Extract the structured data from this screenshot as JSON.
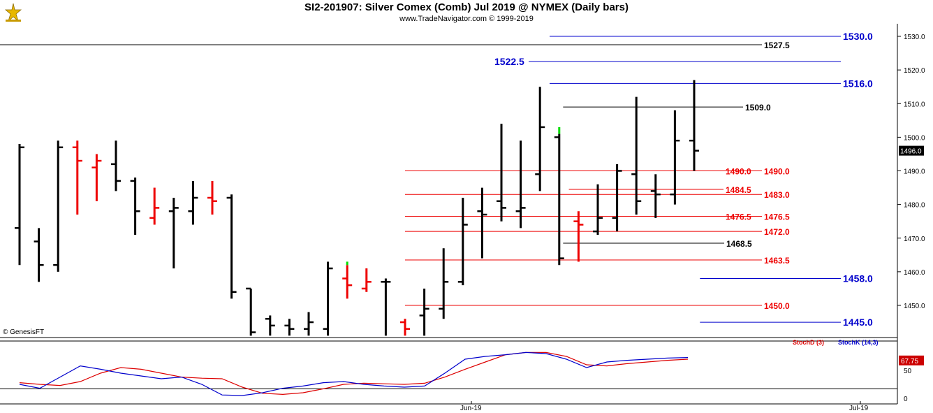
{
  "header": {
    "title": "SI2-201907:  Silver Comex (Comb) Jul 2019 @ NYMEX  (Daily bars)",
    "subtitle": "www.TradeNavigator.com © 1999-2019",
    "logo_icon": "trade-navigator-logo-icon"
  },
  "watermark": "© GenesisFT",
  "chart_data": [
    {
      "type": "ohlc",
      "ylim": [
        1440,
        1532
      ],
      "y_ticks": [
        "1450.0",
        "1460.0",
        "1470.0",
        "1480.0",
        "1490.0",
        "1500.0",
        "1510.0",
        "1520.0",
        "1530.0"
      ],
      "x_ticks": [
        "Jun-19",
        "Jul-19"
      ],
      "last_price": "1496.0",
      "colors": {
        "up": "#000000",
        "down": "#ff0000",
        "highlight": "#00dd00",
        "blue": "#0000cc",
        "red": "#ee0000"
      },
      "bars": [
        {
          "o": 1473,
          "h": 1498,
          "l": 1462,
          "c": 1497,
          "color": "black"
        },
        {
          "o": 1469,
          "h": 1473,
          "l": 1457,
          "c": 1462,
          "color": "black"
        },
        {
          "o": 1462,
          "h": 1499,
          "l": 1460,
          "c": 1497,
          "color": "black"
        },
        {
          "o": 1497,
          "h": 1499,
          "l": 1477,
          "c": 1493,
          "color": "red"
        },
        {
          "o": 1491,
          "h": 1495,
          "l": 1481,
          "c": 1493,
          "color": "red"
        },
        {
          "o": 1492,
          "h": 1499,
          "l": 1484,
          "c": 1487,
          "color": "black"
        },
        {
          "o": 1487,
          "h": 1488,
          "l": 1471,
          "c": 1478,
          "color": "black"
        },
        {
          "o": 1476,
          "h": 1485,
          "l": 1474,
          "c": 1479,
          "color": "red"
        },
        {
          "o": 1478,
          "h": 1482,
          "l": 1461,
          "c": 1479,
          "color": "black"
        },
        {
          "o": 1478,
          "h": 1487,
          "l": 1474,
          "c": 1482,
          "color": "black"
        },
        {
          "o": 1482,
          "h": 1487,
          "l": 1477,
          "c": 1481,
          "color": "red"
        },
        {
          "o": 1482,
          "h": 1483,
          "l": 1452,
          "c": 1454,
          "color": "black"
        },
        {
          "o": 1455,
          "h": 1455,
          "l": 1441,
          "c": 1442,
          "color": "black"
        },
        {
          "o": 1446,
          "h": 1447,
          "l": 1441,
          "c": 1444,
          "color": "black"
        },
        {
          "o": 1444,
          "h": 1446,
          "l": 1441,
          "c": 1443,
          "color": "black"
        },
        {
          "o": 1443,
          "h": 1448,
          "l": 1441,
          "c": 1445,
          "color": "black"
        },
        {
          "o": 1443,
          "h": 1463,
          "l": 1441,
          "c": 1461,
          "color": "black"
        },
        {
          "o": 1458,
          "h": 1462,
          "l": 1452,
          "c": 1456,
          "color": "red",
          "top_highlight": 1463
        },
        {
          "o": 1455,
          "h": 1461,
          "l": 1454,
          "c": 1457,
          "color": "red"
        },
        {
          "o": 1457,
          "h": 1458,
          "l": 1441,
          "c": 1457,
          "color": "black"
        },
        {
          "o": 1445,
          "h": 1446,
          "l": 1441,
          "c": 1443,
          "color": "red"
        },
        {
          "o": 1447,
          "h": 1455,
          "l": 1441,
          "c": 1449,
          "color": "black"
        },
        {
          "o": 1449,
          "h": 1467,
          "l": 1446,
          "c": 1457,
          "color": "black"
        },
        {
          "o": 1457,
          "h": 1482,
          "l": 1456,
          "c": 1474,
          "color": "black"
        },
        {
          "o": 1478,
          "h": 1485,
          "l": 1464,
          "c": 1477,
          "color": "black"
        },
        {
          "o": 1481,
          "h": 1504,
          "l": 1475,
          "c": 1479,
          "color": "black"
        },
        {
          "o": 1478,
          "h": 1499,
          "l": 1473,
          "c": 1479,
          "color": "black"
        },
        {
          "o": 1489,
          "h": 1515,
          "l": 1484,
          "c": 1503,
          "color": "black"
        },
        {
          "o": 1500,
          "h": 1501,
          "l": 1462,
          "c": 1464,
          "color": "black",
          "top_highlight": 1503
        },
        {
          "o": 1475,
          "h": 1478,
          "l": 1463,
          "c": 1474,
          "color": "red"
        },
        {
          "o": 1472,
          "h": 1486,
          "l": 1471,
          "c": 1476,
          "color": "black"
        },
        {
          "o": 1476,
          "h": 1492,
          "l": 1472,
          "c": 1490,
          "color": "black"
        },
        {
          "o": 1489,
          "h": 1512,
          "l": 1477,
          "c": 1481,
          "color": "black"
        },
        {
          "o": 1484,
          "h": 1489,
          "l": 1476,
          "c": 1483,
          "color": "black"
        },
        {
          "o": 1483,
          "h": 1508,
          "l": 1480,
          "c": 1499,
          "color": "black"
        },
        {
          "o": 1499,
          "h": 1517,
          "l": 1490,
          "c": 1496,
          "color": "black"
        }
      ],
      "levels": [
        {
          "label": "1530.0",
          "value": 1530.0,
          "color": "blue",
          "from_bar": 27.5,
          "to": "label",
          "bold": true,
          "size": "large"
        },
        {
          "label": "1527.5",
          "value": 1527.5,
          "color": "black",
          "from_bar": -2,
          "to": "label",
          "bold": true
        },
        {
          "label": "1522.5",
          "value": 1522.5,
          "color": "blue",
          "from_bar": 27.5,
          "to": "right",
          "bold": true,
          "size": "large",
          "label_side": "left"
        },
        {
          "label": "1516.0",
          "value": 1516.0,
          "color": "blue",
          "from_bar": 27.5,
          "to": "label",
          "bold": true,
          "size": "large"
        },
        {
          "label": "1509.0",
          "value": 1509.0,
          "color": "black",
          "from_bar": 28.2,
          "to": "label",
          "bold": true
        },
        {
          "label": "1490.0",
          "value": 1490.0,
          "color": "red",
          "from_bar": 20,
          "to": "label",
          "bold": true
        },
        {
          "label": "1484.5",
          "value": 1484.5,
          "color": "red",
          "from_bar": 28.5,
          "to": "label",
          "bold": true
        },
        {
          "label": "1483.0",
          "value": 1483.0,
          "color": "red",
          "from_bar": 20,
          "to": "label",
          "bold": true
        },
        {
          "label": "1476.5",
          "value": 1476.5,
          "color": "red",
          "from_bar": 20,
          "to": "label",
          "bold": true
        },
        {
          "label": "1472.0",
          "value": 1472.0,
          "color": "red",
          "from_bar": 20,
          "to": "label",
          "bold": true
        },
        {
          "label": "1468.5",
          "value": 1468.5,
          "color": "black",
          "from_bar": 28.2,
          "to": "label",
          "bold": true
        },
        {
          "label": "1463.5",
          "value": 1463.5,
          "color": "red",
          "from_bar": 20,
          "to": "label",
          "bold": true
        },
        {
          "label": "1458.0",
          "value": 1458.0,
          "color": "blue",
          "from_bar": 35.3,
          "to": "label",
          "bold": true,
          "size": "large"
        },
        {
          "label": "1450.0",
          "value": 1450.0,
          "color": "red",
          "from_bar": 20,
          "to": "label",
          "bold": true
        },
        {
          "label": "1445.0",
          "value": 1445.0,
          "color": "blue",
          "from_bar": 35.3,
          "to": "label",
          "bold": true,
          "size": "large"
        }
      ],
      "extra_labels": [
        {
          "label": "1490.0",
          "value": 1490.0,
          "color": "red",
          "bar_pos": 37.8
        },
        {
          "label": "1476.5",
          "value": 1476.5,
          "color": "red",
          "bar_pos": 37.8
        }
      ]
    },
    {
      "type": "line",
      "title": "",
      "ylim": [
        0,
        100
      ],
      "y_ticks": [
        "0",
        "50"
      ],
      "last_value": "67.75",
      "legend": [
        "StochD (3)",
        "StochK (14,3)"
      ],
      "series": [
        {
          "name": "StochD (3)",
          "color": "#dd0000",
          "values": [
            28,
            25,
            23,
            30,
            45,
            55,
            52,
            45,
            38,
            36,
            35,
            20,
            9,
            7,
            10,
            17,
            25,
            27,
            26,
            25,
            27,
            38,
            52,
            65,
            78,
            82,
            82,
            75,
            60,
            58,
            62,
            65,
            68,
            70
          ]
        },
        {
          "name": "StochK (14,3)",
          "color": "#0000cc",
          "values": [
            25,
            18,
            38,
            58,
            52,
            45,
            40,
            35,
            38,
            25,
            6,
            5,
            10,
            18,
            22,
            28,
            30,
            25,
            22,
            20,
            22,
            45,
            70,
            75,
            78,
            82,
            80,
            70,
            55,
            65,
            68,
            70,
            72,
            73
          ]
        }
      ]
    }
  ]
}
